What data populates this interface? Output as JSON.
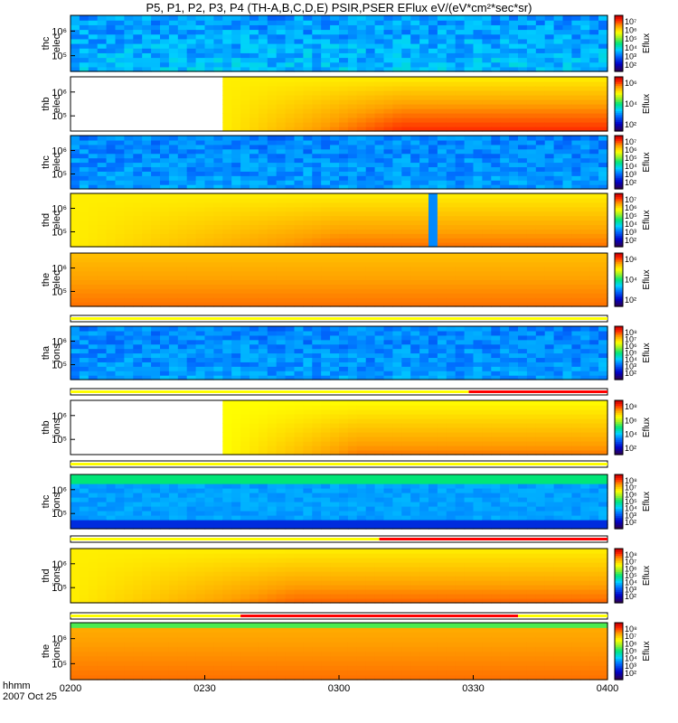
{
  "title": "P5, P1, P2, P3, P4 (TH-A,B,C,D,E) PSIR,PSER EFlux eV/(eV*cm²*sec*sr)",
  "footer": {
    "label": "hhmm",
    "date": "2007 Oct 25"
  },
  "colors": {
    "bar_yellow": "#ffff00",
    "bar_red": "#ff0000"
  },
  "chart_data": [
    {
      "type": "heatmap",
      "ylabel": "thc elec",
      "colorbar_label": "Eflux",
      "y_ticks": [
        "10⁶",
        "10⁵"
      ],
      "cbar_ticks": [
        "10⁷",
        "10⁶",
        "10⁵",
        "10⁴",
        "10³",
        "10²"
      ],
      "x_range": [
        0,
        120
      ]
    },
    {
      "type": "heatmap",
      "ylabel": "thb elec",
      "colorbar_label": "Eflux",
      "y_ticks": [
        "10⁶",
        "10⁵"
      ],
      "cbar_ticks": [
        "10⁶",
        "10⁴",
        "10²"
      ],
      "x_range": [
        0,
        120
      ]
    },
    {
      "type": "heatmap",
      "ylabel": "thc elec",
      "colorbar_label": "Eflux",
      "y_ticks": [
        "10⁶",
        "10⁵"
      ],
      "cbar_ticks": [
        "10⁷",
        "10⁶",
        "10⁵",
        "10⁴",
        "10³",
        "10²"
      ],
      "x_range": [
        0,
        120
      ]
    },
    {
      "type": "heatmap",
      "ylabel": "thd elec",
      "colorbar_label": "Eflux",
      "y_ticks": [
        "10⁶",
        "10⁵"
      ],
      "cbar_ticks": [
        "10⁷",
        "10⁶",
        "10⁵",
        "10⁴",
        "10³",
        "10²"
      ],
      "x_range": [
        0,
        120
      ]
    },
    {
      "type": "heatmap",
      "ylabel": "the elec",
      "colorbar_label": "Eflux",
      "y_ticks": [
        "10⁶",
        "10⁵"
      ],
      "cbar_ticks": [
        "10⁶",
        "10⁴",
        "10²"
      ],
      "x_range": [
        0,
        120
      ]
    },
    {
      "type": "heatmap",
      "ylabel": "tha ions",
      "colorbar_label": "Eflux",
      "y_ticks": [
        "10⁶",
        "10⁵"
      ],
      "cbar_ticks": [
        "10⁸",
        "10⁷",
        "10⁶",
        "10⁵",
        "10⁴",
        "10³",
        "10²"
      ],
      "x_range": [
        0,
        120
      ]
    },
    {
      "type": "heatmap",
      "ylabel": "thb ions",
      "colorbar_label": "Eflux",
      "y_ticks": [
        "10⁶",
        "10⁵"
      ],
      "cbar_ticks": [
        "10⁸",
        "10⁶",
        "10⁴",
        "10²"
      ],
      "x_range": [
        0,
        120
      ]
    },
    {
      "type": "heatmap",
      "ylabel": "thc ions",
      "colorbar_label": "Eflux",
      "y_ticks": [
        "10⁶",
        "10⁵"
      ],
      "cbar_ticks": [
        "10⁸",
        "10⁷",
        "10⁶",
        "10⁵",
        "10⁴",
        "10³",
        "10²"
      ],
      "x_range": [
        0,
        120
      ]
    },
    {
      "type": "heatmap",
      "ylabel": "thd ions",
      "colorbar_label": "Eflux",
      "y_ticks": [
        "10⁶",
        "10⁵"
      ],
      "cbar_ticks": [
        "10⁸",
        "10⁷",
        "10⁶",
        "10⁵",
        "10⁴",
        "10³",
        "10²"
      ],
      "x_range": [
        0,
        120
      ]
    },
    {
      "type": "heatmap",
      "ylabel": "the ions",
      "colorbar_label": "Eflux",
      "y_ticks": [
        "10⁶",
        "10⁵"
      ],
      "cbar_ticks": [
        "10⁸",
        "10⁷",
        "10⁶",
        "10⁵",
        "10⁴",
        "10³",
        "10²"
      ],
      "x_range": [
        0,
        120
      ]
    }
  ],
  "mode_bars": [
    {
      "segments": [
        {
          "from": 0,
          "to": 120,
          "color": "yellow"
        }
      ]
    },
    {
      "segments": [
        {
          "from": 0,
          "to": 89,
          "color": "yellow"
        },
        {
          "from": 89,
          "to": 120,
          "color": "red"
        }
      ]
    },
    {
      "segments": [
        {
          "from": 0,
          "to": 120,
          "color": "yellow"
        }
      ]
    },
    {
      "segments": [
        {
          "from": 0,
          "to": 69,
          "color": "yellow"
        },
        {
          "from": 69,
          "to": 120,
          "color": "red"
        }
      ]
    },
    {
      "segments": [
        {
          "from": 0,
          "to": 38,
          "color": "yellow"
        },
        {
          "from": 38,
          "to": 100,
          "color": "red"
        },
        {
          "from": 100,
          "to": 120,
          "color": "yellow"
        }
      ]
    }
  ],
  "x_ticks": [
    {
      "t": 0,
      "label": "0200"
    },
    {
      "t": 30,
      "label": "0230"
    },
    {
      "t": 60,
      "label": "0300"
    },
    {
      "t": 90,
      "label": "0330"
    },
    {
      "t": 120,
      "label": "0400"
    }
  ]
}
